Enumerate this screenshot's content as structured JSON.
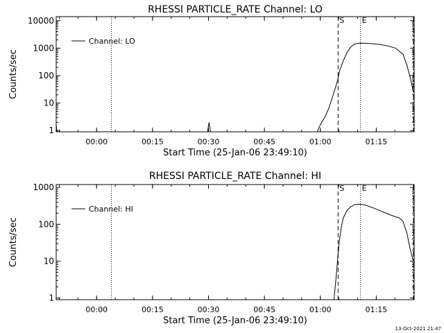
{
  "footer_timestamp": "13-Oct-2021 21:47",
  "chart_data": [
    {
      "type": "line",
      "title": "RHESSI PARTICLE_RATE Channel: LO",
      "xlabel": "Start Time (25-Jan-06 23:49:10)",
      "ylabel": "Counts/sec",
      "yscale": "log",
      "ylim": [
        0.9,
        14000
      ],
      "xlim_minutes_after_start": [
        0,
        96
      ],
      "xtick_labels": [
        "00:00",
        "00:15",
        "00:30",
        "00:45",
        "01:00",
        "01:15"
      ],
      "xtick_minutes": [
        10.833,
        25.833,
        40.833,
        55.833,
        70.833,
        85.833
      ],
      "ytick_labels": [
        "1",
        "10",
        "100",
        "1000",
        "10000"
      ],
      "ytick_values": [
        1,
        10,
        100,
        1000,
        10000
      ],
      "legend": {
        "position": "top-left",
        "entries": [
          "Channel: LO"
        ]
      },
      "markers": [
        {
          "label": "",
          "style": "dotted",
          "minute": 14.8
        },
        {
          "label": "S",
          "style": "dashed",
          "minute": 75.6
        },
        {
          "label": "E",
          "style": "dotted",
          "minute": 81.6
        },
        {
          "label": "",
          "style": "dashdot",
          "minute": 95.8
        }
      ],
      "series": [
        {
          "name": "Channel: LO",
          "x": [
            0,
            0.2,
            40.6,
            41.0,
            41.4,
            70.0,
            70.5,
            71,
            72,
            73,
            74,
            74.5,
            75,
            75.5,
            76,
            77,
            78,
            79,
            80,
            81,
            82,
            83,
            85,
            87,
            89,
            91,
            93,
            94,
            95,
            95.8
          ],
          "y": [
            1.6,
            0.9,
            0.9,
            2.0,
            0.9,
            0.9,
            1.3,
            1.8,
            3.0,
            6.0,
            15,
            25,
            40,
            70,
            150,
            350,
            700,
            1100,
            1400,
            1500,
            1520,
            1500,
            1450,
            1350,
            1200,
            1000,
            600,
            250,
            80,
            25
          ]
        }
      ]
    },
    {
      "type": "line",
      "title": "RHESSI PARTICLE_RATE Channel: HI",
      "xlabel": "Start Time (25-Jan-06 23:49:10)",
      "ylabel": "Counts/sec",
      "yscale": "log",
      "ylim": [
        0.9,
        1200
      ],
      "xlim_minutes_after_start": [
        0,
        96
      ],
      "xtick_labels": [
        "00:00",
        "00:15",
        "00:30",
        "00:45",
        "01:00",
        "01:15"
      ],
      "xtick_minutes": [
        10.833,
        25.833,
        40.833,
        55.833,
        70.833,
        85.833
      ],
      "ytick_labels": [
        "1",
        "10",
        "100",
        "1000"
      ],
      "ytick_values": [
        1,
        10,
        100,
        1000
      ],
      "legend": {
        "position": "top-left",
        "entries": [
          "Channel: HI"
        ]
      },
      "markers": [
        {
          "label": "",
          "style": "dotted",
          "minute": 14.8
        },
        {
          "label": "S",
          "style": "dashed",
          "minute": 75.6
        },
        {
          "label": "E",
          "style": "dotted",
          "minute": 81.6
        },
        {
          "label": "",
          "style": "dashdot",
          "minute": 95.8
        }
      ],
      "series": [
        {
          "name": "Channel: HI",
          "x": [
            74.5,
            75.0,
            75.5,
            76,
            76.5,
            77,
            78,
            79,
            80,
            81,
            82,
            83,
            85,
            87,
            89,
            91,
            92,
            93,
            94,
            95,
            95.8
          ],
          "y": [
            0.9,
            3,
            12,
            40,
            90,
            150,
            240,
            300,
            340,
            350,
            345,
            330,
            280,
            230,
            190,
            160,
            150,
            120,
            60,
            20,
            10
          ]
        }
      ]
    }
  ]
}
